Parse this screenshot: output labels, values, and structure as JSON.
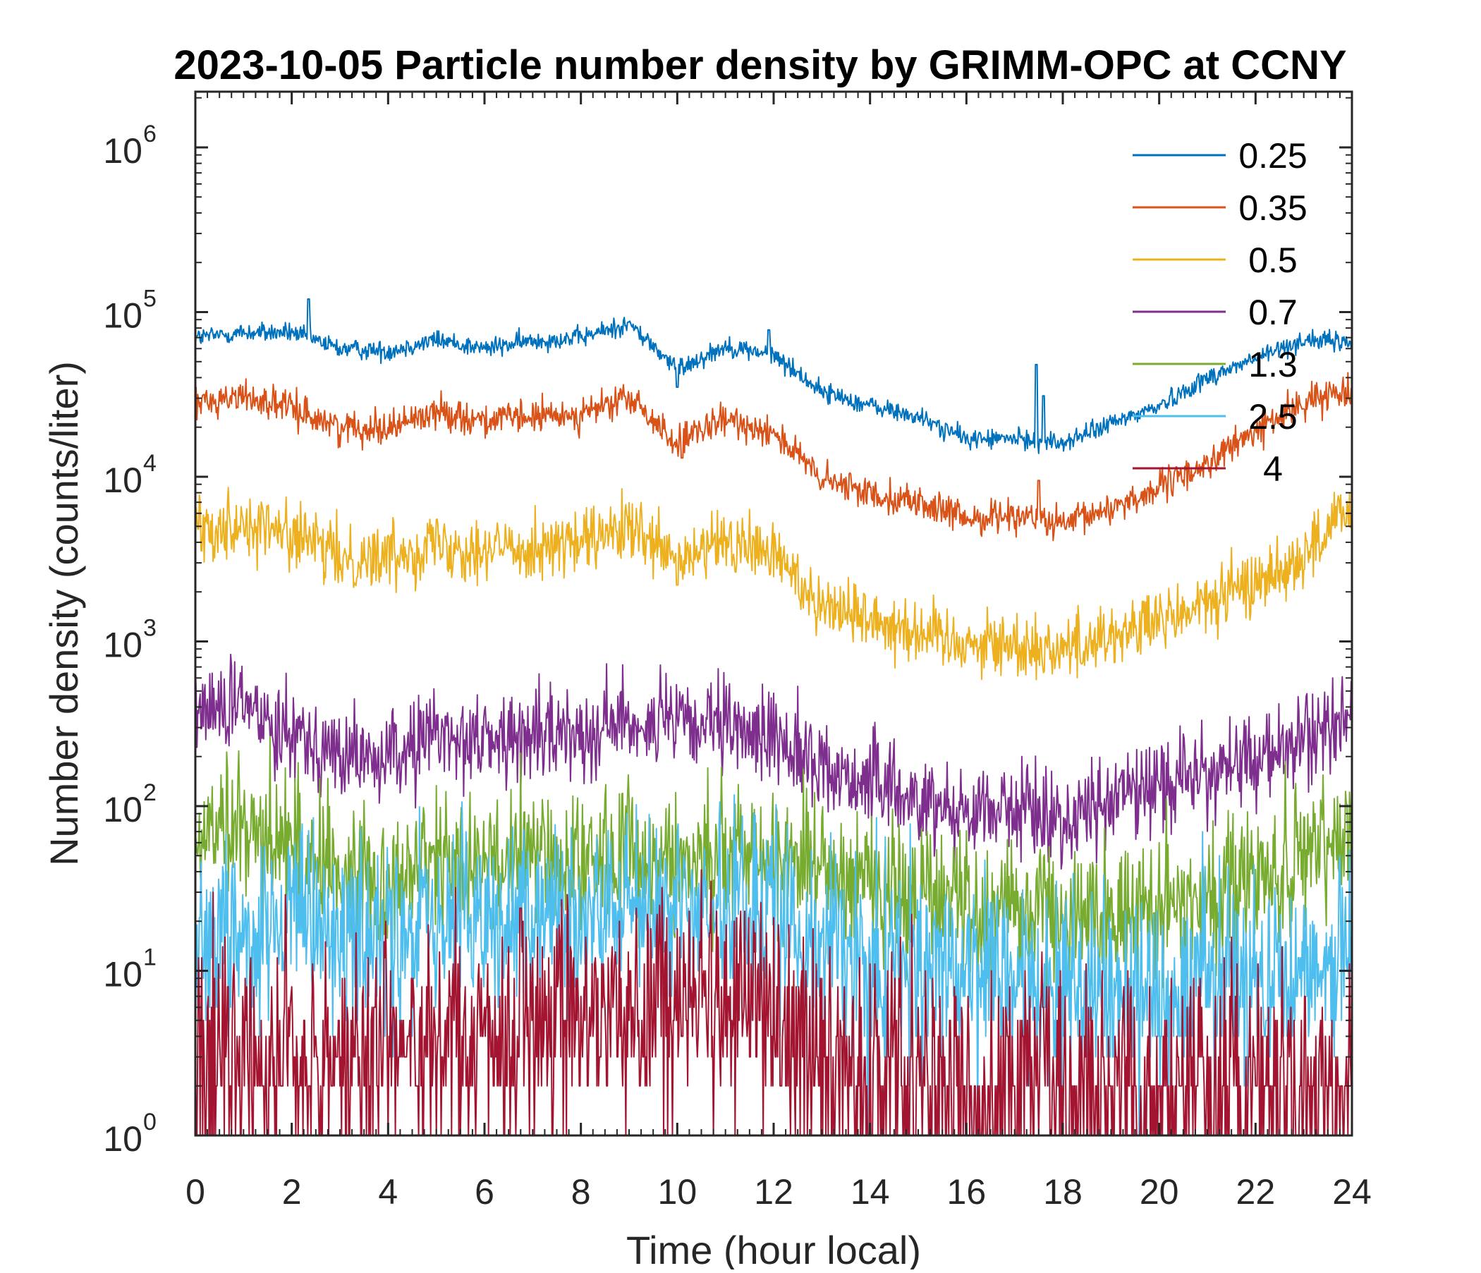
{
  "chart_data": {
    "type": "line",
    "title": "2023-10-05 Particle number density by GRIMM-OPC at CCNY",
    "xlabel": "Time (hour local)",
    "ylabel": "Number density (counts/liter)",
    "xlim": [
      0,
      24
    ],
    "ylim": [
      1,
      2000000
    ],
    "yscale": "log",
    "xticks": [
      0,
      2,
      4,
      6,
      8,
      10,
      12,
      14,
      16,
      18,
      20,
      22,
      24
    ],
    "yticks": [
      {
        "base": "10",
        "exp": "0",
        "value": 1
      },
      {
        "base": "10",
        "exp": "1",
        "value": 10
      },
      {
        "base": "10",
        "exp": "2",
        "value": 100
      },
      {
        "base": "10",
        "exp": "3",
        "value": 1000
      },
      {
        "base": "10",
        "exp": "4",
        "value": 10000
      },
      {
        "base": "10",
        "exp": "5",
        "value": 100000
      },
      {
        "base": "10",
        "exp": "6",
        "value": 1000000
      }
    ],
    "legend_position": "top-right",
    "x": [
      0,
      1,
      2,
      3,
      4,
      5,
      6,
      7,
      8,
      9,
      10,
      11,
      12,
      13,
      14,
      15,
      16,
      17,
      18,
      19,
      20,
      21,
      22,
      23,
      24
    ],
    "series": [
      {
        "name": "0.25",
        "color": "#0072BD",
        "noise": 0.03,
        "values": [
          70000,
          75000,
          75000,
          60000,
          58000,
          68000,
          60000,
          67000,
          70000,
          85000,
          45000,
          62000,
          55000,
          33000,
          27000,
          23000,
          17000,
          17000,
          16000,
          21000,
          27000,
          40000,
          52000,
          68000,
          65000
        ],
        "spikes": [
          {
            "x": 2.35,
            "v": 120000
          },
          {
            "x": 11.9,
            "v": 78000
          },
          {
            "x": 10.0,
            "v": 35000
          },
          {
            "x": 17.45,
            "v": 48000
          },
          {
            "x": 17.6,
            "v": 31000
          }
        ]
      },
      {
        "name": "0.35",
        "color": "#D95319",
        "noise": 0.05,
        "values": [
          28000,
          31000,
          26000,
          20000,
          20000,
          25000,
          22000,
          23000,
          24000,
          30000,
          16000,
          22000,
          19000,
          9500,
          8000,
          7000,
          5500,
          6000,
          5000,
          6500,
          8500,
          12000,
          19000,
          28000,
          35000
        ],
        "spikes": [
          {
            "x": 10.1,
            "v": 13000
          },
          {
            "x": 17.5,
            "v": 9500
          }
        ]
      },
      {
        "name": "0.5",
        "color": "#EDB120",
        "noise": 0.1,
        "values": [
          5000,
          5200,
          4500,
          3200,
          3300,
          4000,
          3600,
          3800,
          3900,
          4800,
          3000,
          4000,
          3400,
          1700,
          1400,
          1150,
          1000,
          950,
          900,
          1100,
          1300,
          1700,
          2300,
          3300,
          6500
        ],
        "spikes": [
          {
            "x": 10.0,
            "v": 2200
          }
        ]
      },
      {
        "name": "0.7",
        "color": "#7E2F8E",
        "noise": 0.14,
        "values": [
          380,
          400,
          300,
          200,
          190,
          280,
          250,
          260,
          290,
          330,
          310,
          290,
          270,
          170,
          140,
          110,
          95,
          100,
          80,
          110,
          140,
          160,
          190,
          240,
          380
        ],
        "spikes": []
      },
      {
        "name": "1.3",
        "color": "#77AC30",
        "noise": 0.22,
        "values": [
          60,
          70,
          60,
          40,
          35,
          45,
          45,
          50,
          48,
          50,
          45,
          55,
          50,
          45,
          35,
          30,
          26,
          24,
          22,
          22,
          24,
          30,
          35,
          45,
          70
        ],
        "spikes": []
      },
      {
        "name": "2.5",
        "color": "#4DBEEE",
        "noise": 0.3,
        "values": [
          18,
          18,
          18,
          16,
          15,
          20,
          18,
          22,
          20,
          24,
          22,
          24,
          22,
          16,
          12,
          10,
          9,
          8,
          8,
          8,
          8,
          9,
          10,
          11,
          12
        ],
        "spikes": []
      },
      {
        "name": "4",
        "color": "#A2142F",
        "noise": 0.35,
        "values": [
          3,
          3,
          3,
          3,
          3.5,
          3.5,
          3,
          5,
          5.5,
          6,
          6,
          7,
          6,
          3,
          2.5,
          2,
          2,
          1.8,
          1.8,
          1.8,
          2,
          2,
          2,
          2,
          2
        ],
        "spikes": [
          {
            "x": 6.75,
            "v": 24
          }
        ]
      }
    ]
  }
}
